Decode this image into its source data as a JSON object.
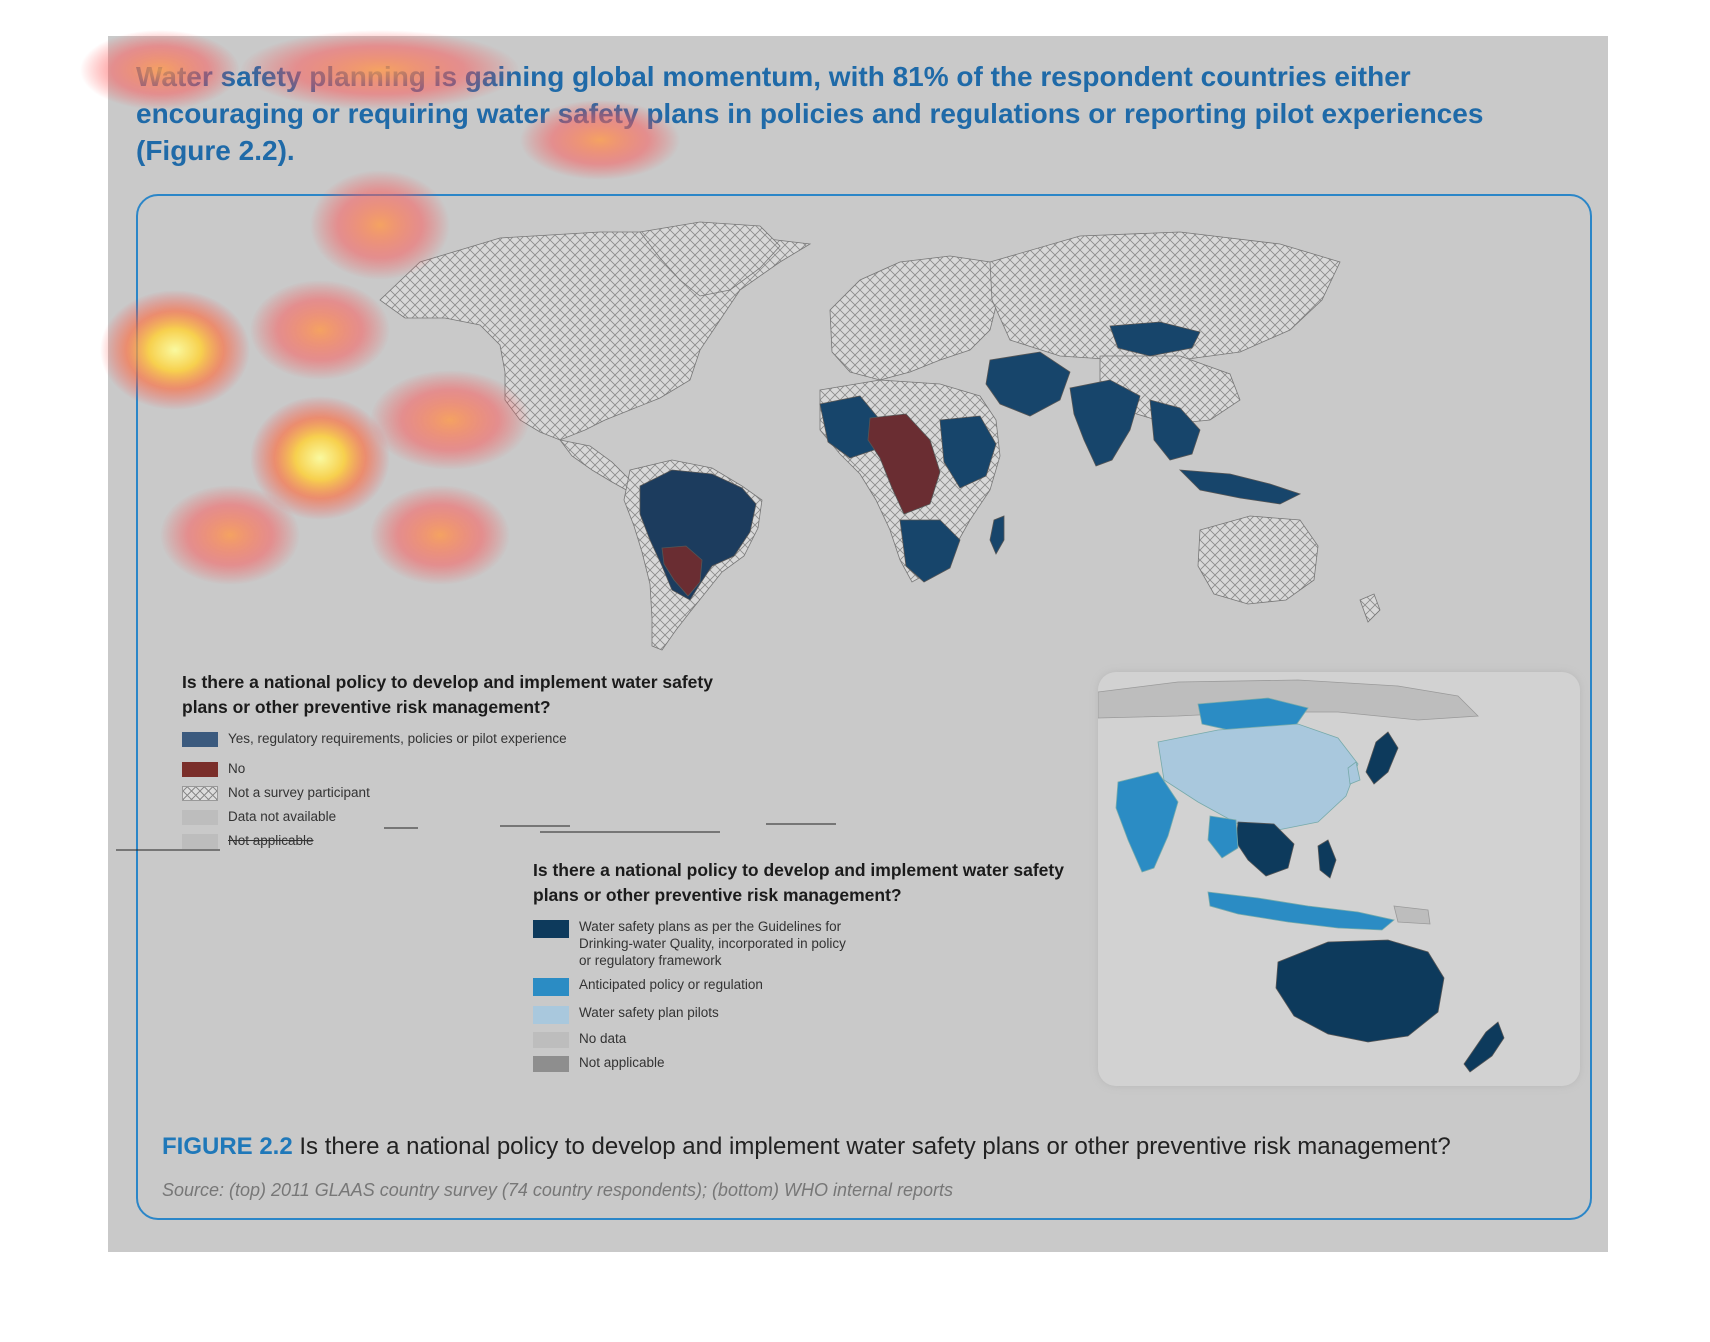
{
  "intro_text": "Water safety planning is gaining global momentum, with 81% of the respondent countries either encouraging or requiring water safety plans in policies and regulations or reporting pilot experiences (Figure 2.2).",
  "legend_top": {
    "title": "Is there a national policy to develop and implement water safety plans or other preventive risk management?",
    "items": [
      {
        "label": "Yes, regulatory requirements, policies or pilot experience",
        "color": "#17456b"
      },
      {
        "label": "No",
        "color": "#7a2e2a"
      },
      {
        "label": "Not a survey participant",
        "color": "hatch"
      },
      {
        "label": "Data not available",
        "color": "#bdbdbd"
      },
      {
        "label": "Not applicable",
        "color": "#bdbdbd"
      }
    ]
  },
  "legend_bottom": {
    "title": "Is there a national policy to develop and implement water safety plans or other preventive risk management?",
    "items": [
      {
        "label": "Water safety plans as per the Guidelines for Drinking-water Quality, incorporated in policy or regulatory framework",
        "color": "#0d3a5c"
      },
      {
        "label": "Anticipated policy or regulation",
        "color": "#2b8cc4"
      },
      {
        "label": "Water safety plan pilots",
        "color": "#a9c8dd"
      },
      {
        "label": "No data",
        "color": "#bdbdbd"
      },
      {
        "label": "Not applicable",
        "color": "#8e8e8e"
      }
    ]
  },
  "caption": {
    "label": "FIGURE 2.2",
    "text": " Is there a national policy to develop and implement water safety plans or other preventive risk management?"
  },
  "source": "Source: (top) 2011 GLAAS country survey (74 country respondents); (bottom) WHO internal reports"
}
